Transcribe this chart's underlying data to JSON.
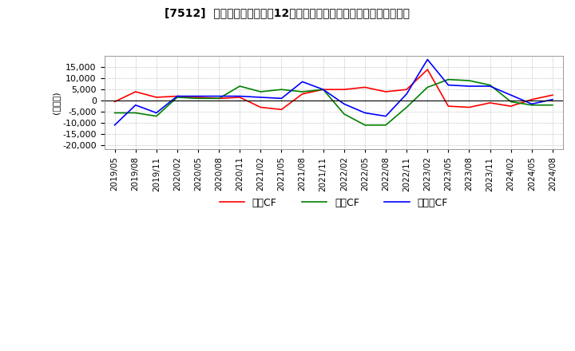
{
  "title": "[7512]  キャッシュフローの12か月移動合計の対前年同期増減額の推移",
  "ylabel": "(百万円)",
  "ylim": [
    -22000,
    20000
  ],
  "yticks": [
    -20000,
    -15000,
    -10000,
    -5000,
    0,
    5000,
    10000,
    15000
  ],
  "legend_labels": [
    "営業CF",
    "投資CF",
    "フリーCF"
  ],
  "color_eigyo": "#ff0000",
  "color_toshi": "#008000",
  "color_free": "#0000ff",
  "dates": [
    "2019/05",
    "2019/08",
    "2019/11",
    "2020/02",
    "2020/05",
    "2020/08",
    "2020/11",
    "2021/02",
    "2021/05",
    "2021/08",
    "2021/11",
    "2022/02",
    "2022/05",
    "2022/08",
    "2022/11",
    "2023/02",
    "2023/05",
    "2023/08",
    "2023/11",
    "2024/02",
    "2024/05",
    "2024/08"
  ],
  "eigyo": [
    -500,
    4000,
    1500,
    2000,
    1500,
    1000,
    1500,
    -3000,
    -4000,
    3000,
    5000,
    5000,
    6000,
    4000,
    5000,
    14000,
    -2500,
    -3000,
    -1000,
    -2500,
    500,
    2500
  ],
  "toshi": [
    -5500,
    -5500,
    -7000,
    1500,
    1000,
    1000,
    6500,
    4000,
    5000,
    4000,
    5000,
    -6000,
    -11000,
    -11000,
    -3000,
    6000,
    9500,
    9000,
    7000,
    -500,
    -2000,
    -2000
  ],
  "free": [
    -11000,
    -2000,
    -5500,
    2000,
    2000,
    2000,
    2000,
    1500,
    1000,
    8500,
    5000,
    -1500,
    -5500,
    -7000,
    3000,
    18500,
    7000,
    6500,
    6500,
    2500,
    -1500,
    500
  ]
}
